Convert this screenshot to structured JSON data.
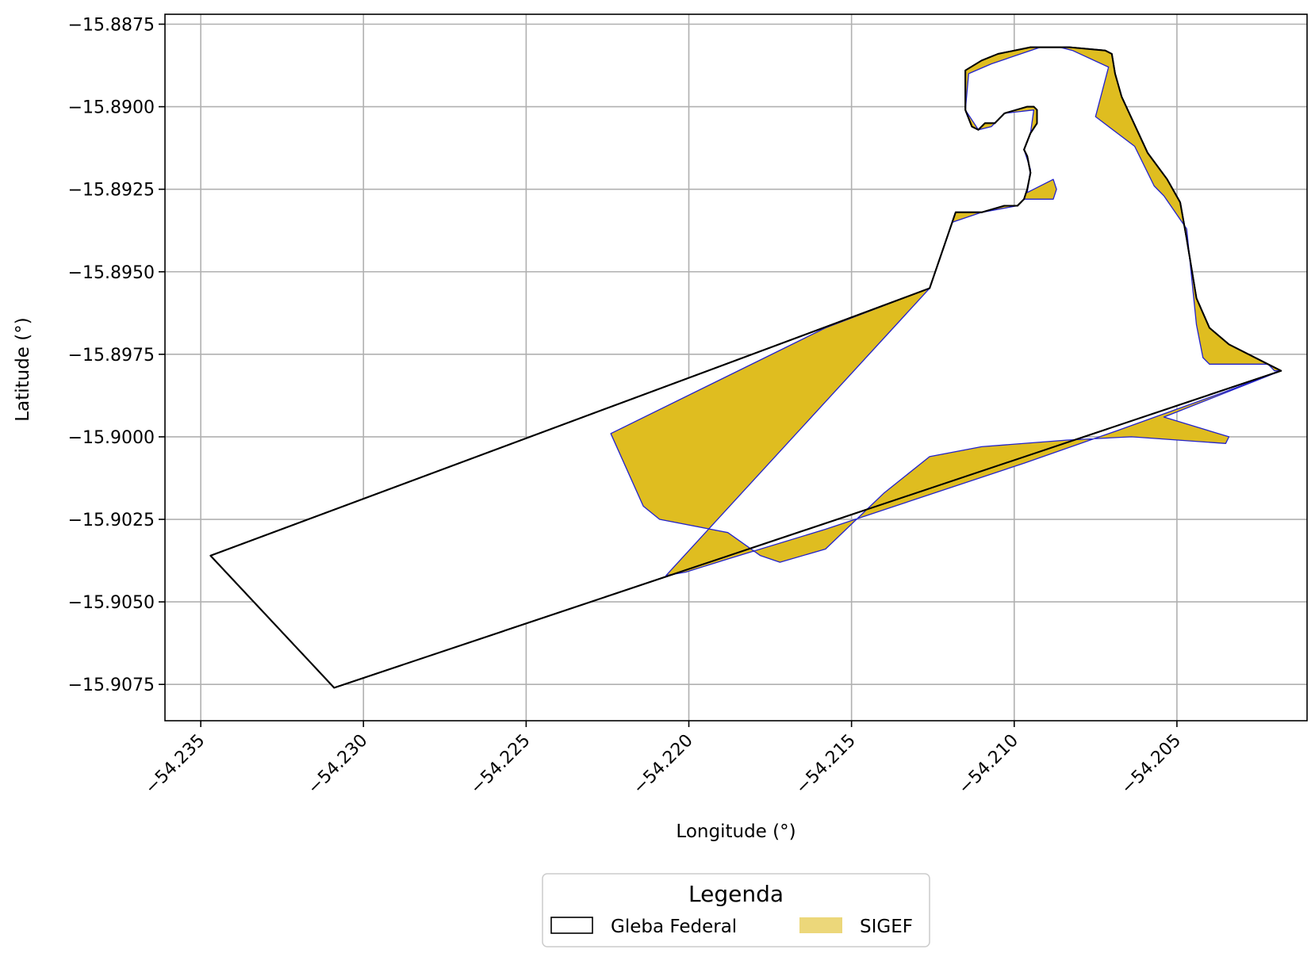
{
  "chart_data": {
    "type": "map",
    "xlabel": "Longitude (°)",
    "ylabel": "Latitude (°)",
    "xlim": [
      -54.2361,
      -54.201
    ],
    "ylim": [
      -15.9086,
      -15.8872
    ],
    "grid": true,
    "x_ticks": [
      {
        "value": -54.235,
        "label": "−54.235"
      },
      {
        "value": -54.23,
        "label": "−54.230"
      },
      {
        "value": -54.225,
        "label": "−54.225"
      },
      {
        "value": -54.22,
        "label": "−54.220"
      },
      {
        "value": -54.215,
        "label": "−54.215"
      },
      {
        "value": -54.21,
        "label": "−54.210"
      },
      {
        "value": -54.205,
        "label": "−54.205"
      }
    ],
    "y_ticks": [
      {
        "value": -15.8875,
        "label": "−15.8875"
      },
      {
        "value": -15.89,
        "label": "−15.8900"
      },
      {
        "value": -15.8925,
        "label": "−15.8925"
      },
      {
        "value": -15.895,
        "label": "−15.8950"
      },
      {
        "value": -15.8975,
        "label": "−15.8975"
      },
      {
        "value": -15.9,
        "label": "−15.9000"
      },
      {
        "value": -15.9025,
        "label": "−15.9025"
      },
      {
        "value": -15.905,
        "label": "−15.9050"
      },
      {
        "value": -15.9075,
        "label": "−15.9075"
      }
    ],
    "legend": {
      "title": "Legenda",
      "placement": "bottom-center",
      "entries": [
        {
          "label": "Gleba Federal",
          "fill": "#ffffff",
          "stroke": "#000000"
        },
        {
          "label": "SIGEF",
          "fill": "#ecd77a",
          "stroke": "none"
        }
      ]
    },
    "layers": {
      "gleba": {
        "name": "Gleba Federal",
        "fill": "#ffffff",
        "stroke": "#000000",
        "coords": [
          [
            -54.2347,
            -15.9036
          ],
          [
            -54.2309,
            -15.9076
          ],
          [
            -54.2018,
            -15.898
          ],
          [
            -54.2034,
            -15.8972
          ],
          [
            -54.204,
            -15.8967
          ],
          [
            -54.2044,
            -15.8958
          ],
          [
            -54.2047,
            -15.894
          ],
          [
            -54.2049,
            -15.8929
          ],
          [
            -54.2053,
            -15.8922
          ],
          [
            -54.2059,
            -15.8914
          ],
          [
            -54.2067,
            -15.8897
          ],
          [
            -54.2069,
            -15.889
          ],
          [
            -54.207,
            -15.8884
          ],
          [
            -54.2072,
            -15.8883
          ],
          [
            -54.2083,
            -15.8882
          ],
          [
            -54.2095,
            -15.8882
          ],
          [
            -54.2105,
            -15.8884
          ],
          [
            -54.211,
            -15.8886
          ],
          [
            -54.2115,
            -15.8889
          ],
          [
            -54.2115,
            -15.8901
          ],
          [
            -54.2113,
            -15.8906
          ],
          [
            -54.2111,
            -15.8907
          ],
          [
            -54.2109,
            -15.8905
          ],
          [
            -54.2106,
            -15.8905
          ],
          [
            -54.2103,
            -15.8902
          ],
          [
            -54.2096,
            -15.89
          ],
          [
            -54.2094,
            -15.89
          ],
          [
            -54.2093,
            -15.8901
          ],
          [
            -54.2093,
            -15.8905
          ],
          [
            -54.2095,
            -15.8908
          ],
          [
            -54.2097,
            -15.8913
          ],
          [
            -54.2096,
            -15.8915
          ],
          [
            -54.2095,
            -15.892
          ],
          [
            -54.2096,
            -15.8925
          ],
          [
            -54.2097,
            -15.8928
          ],
          [
            -54.2099,
            -15.893
          ],
          [
            -54.2103,
            -15.893
          ],
          [
            -54.211,
            -15.8932
          ],
          [
            -54.2118,
            -15.8932
          ],
          [
            -54.2126,
            -15.8955
          ]
        ]
      },
      "sigef": {
        "name": "SIGEF",
        "fill": "#dfbd20",
        "stroke": "#2222cc",
        "parcels": [
          [
            [
              -54.2126,
              -15.8955
            ],
            [
              -54.2118,
              -15.8932
            ],
            [
              -54.211,
              -15.8932
            ],
            [
              -54.2103,
              -15.893
            ],
            [
              -54.2099,
              -15.893
            ],
            [
              -54.2097,
              -15.8928
            ],
            [
              -54.2096,
              -15.8925
            ],
            [
              -54.2095,
              -15.892
            ],
            [
              -54.2096,
              -15.8915
            ],
            [
              -54.2097,
              -15.8913
            ],
            [
              -54.2095,
              -15.8908
            ],
            [
              -54.2093,
              -15.8905
            ],
            [
              -54.2093,
              -15.8901
            ],
            [
              -54.2094,
              -15.89
            ],
            [
              -54.2096,
              -15.89
            ],
            [
              -54.2103,
              -15.8902
            ],
            [
              -54.2106,
              -15.8905
            ],
            [
              -54.2109,
              -15.8905
            ],
            [
              -54.2111,
              -15.8907
            ],
            [
              -54.2113,
              -15.8906
            ],
            [
              -54.2115,
              -15.8901
            ],
            [
              -54.2115,
              -15.8889
            ],
            [
              -54.211,
              -15.8886
            ],
            [
              -54.2105,
              -15.8884
            ],
            [
              -54.2095,
              -15.8882
            ],
            [
              -54.2083,
              -15.8882
            ],
            [
              -54.2072,
              -15.8883
            ],
            [
              -54.207,
              -15.8884
            ],
            [
              -54.2069,
              -15.889
            ],
            [
              -54.2067,
              -15.8897
            ],
            [
              -54.2059,
              -15.8914
            ],
            [
              -54.2053,
              -15.8922
            ],
            [
              -54.2049,
              -15.8929
            ],
            [
              -54.2047,
              -15.894
            ],
            [
              -54.2044,
              -15.8958
            ],
            [
              -54.204,
              -15.8967
            ],
            [
              -54.2034,
              -15.8972
            ],
            [
              -54.2018,
              -15.898
            ],
            [
              -54.202,
              -15.898
            ],
            [
              -54.2022,
              -15.8978
            ],
            [
              -54.2032,
              -15.8978
            ],
            [
              -54.204,
              -15.8978
            ],
            [
              -54.2042,
              -15.8976
            ],
            [
              -54.2044,
              -15.8966
            ],
            [
              -54.2047,
              -15.8937
            ],
            [
              -54.2054,
              -15.8927
            ],
            [
              -54.2057,
              -15.8924
            ],
            [
              -54.2063,
              -15.8912
            ],
            [
              -54.2075,
              -15.8903
            ],
            [
              -54.2071,
              -15.8888
            ],
            [
              -54.2082,
              -15.8883
            ],
            [
              -54.2086,
              -15.8882
            ],
            [
              -54.2092,
              -15.8882
            ],
            [
              -54.2107,
              -15.8887
            ],
            [
              -54.2114,
              -15.889
            ],
            [
              -54.2115,
              -15.8901
            ],
            [
              -54.2111,
              -15.8907
            ],
            [
              -54.2107,
              -15.8906
            ],
            [
              -54.2103,
              -15.8902
            ],
            [
              -54.2094,
              -15.8901
            ],
            [
              -54.2095,
              -15.8908
            ],
            [
              -54.2097,
              -15.8913
            ],
            [
              -54.2095,
              -15.8919
            ],
            [
              -54.2096,
              -15.8926
            ],
            [
              -54.2088,
              -15.8922
            ],
            [
              -54.2087,
              -15.8925
            ],
            [
              -54.2088,
              -15.8928
            ],
            [
              -54.2097,
              -15.8928
            ],
            [
              -54.2099,
              -15.893
            ],
            [
              -54.211,
              -15.8932
            ],
            [
              -54.2119,
              -15.8935
            ],
            [
              -54.2126,
              -15.8955
            ],
            [
              -54.2158,
              -15.8967
            ],
            [
              -54.2224,
              -15.8999
            ],
            [
              -54.2214,
              -15.9021
            ],
            [
              -54.2209,
              -15.9025
            ],
            [
              -54.2188,
              -15.9029
            ],
            [
              -54.2178,
              -15.9036
            ],
            [
              -54.2172,
              -15.9038
            ],
            [
              -54.2158,
              -15.9034
            ],
            [
              -54.214,
              -15.9017
            ],
            [
              -54.2126,
              -15.9006
            ],
            [
              -54.211,
              -15.9003
            ],
            [
              -54.2084,
              -15.9001
            ],
            [
              -54.2064,
              -15.9
            ],
            [
              -54.2035,
              -15.9002
            ],
            [
              -54.2034,
              -15.9
            ],
            [
              -54.2054,
              -15.8994
            ],
            [
              -54.2018,
              -15.898
            ],
            [
              -54.2037,
              -15.8987
            ],
            [
              -54.2068,
              -15.8998
            ],
            [
              -54.2097,
              -15.9008
            ],
            [
              -54.2158,
              -15.9028
            ],
            [
              -54.2188,
              -15.9037
            ],
            [
              -54.2201,
              -15.9041
            ],
            [
              -54.2207,
              -15.9042
            ]
          ]
        ]
      }
    }
  }
}
